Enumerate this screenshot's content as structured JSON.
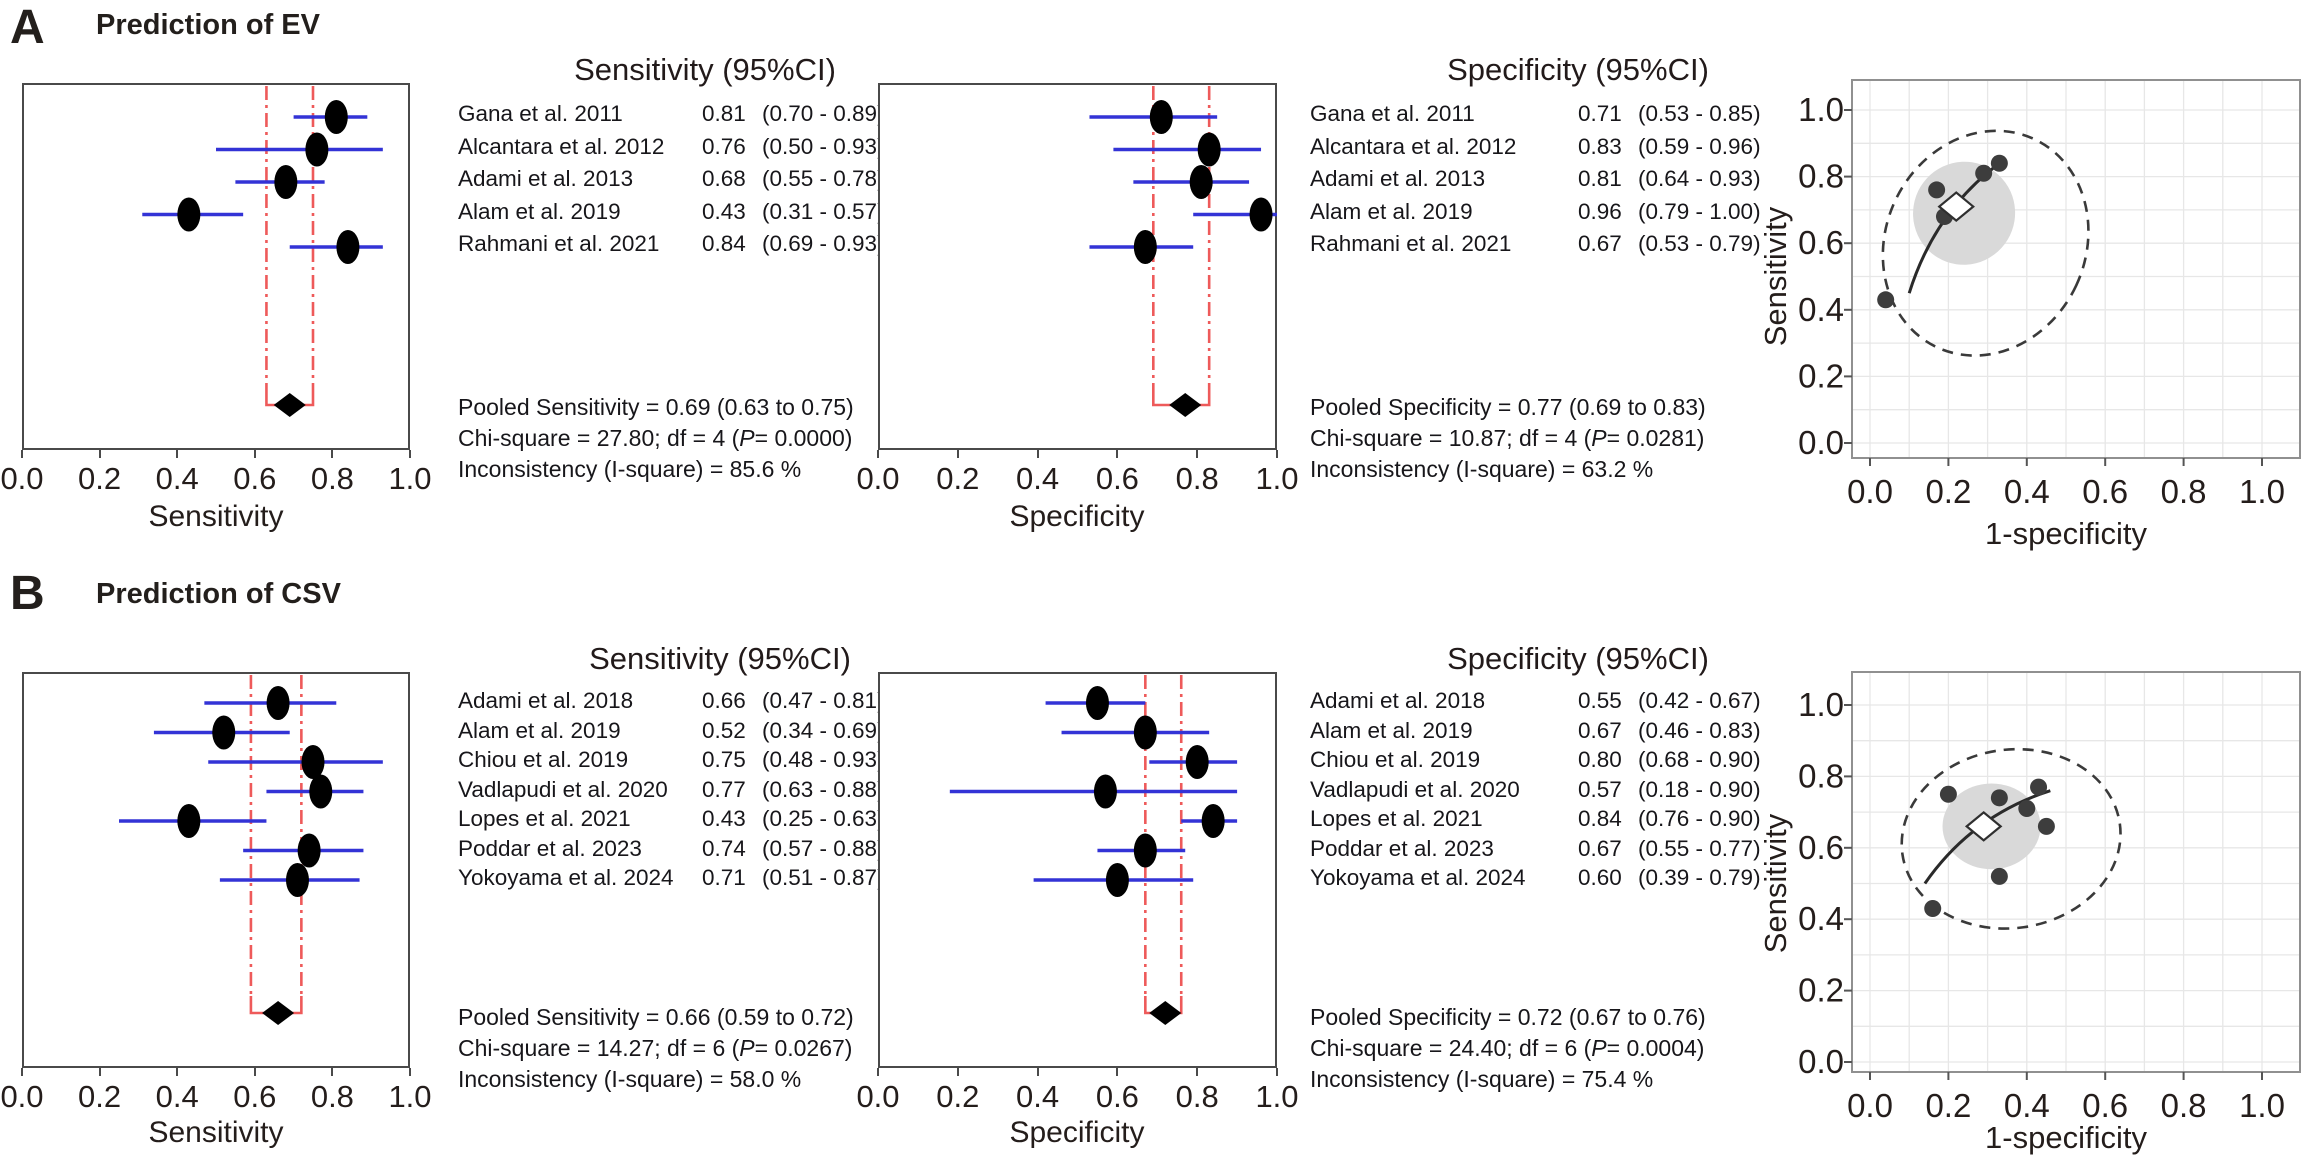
{
  "colors": {
    "ci_line_blue": "#3333d6",
    "pooled_red": "#ee5a5a",
    "marker_black": "#000000",
    "box_border": "#4a4a4a",
    "sroc_point": "#3d3d3d",
    "sroc_conf_fill": "#d9d9d9",
    "sroc_pred_stroke": "#3a3a3a",
    "grid": "#e7e7e7",
    "frame": "#909090",
    "text": "#171412"
  },
  "panels": [
    {
      "label": "A",
      "title": "Prediction of EV"
    },
    {
      "label": "B",
      "title": "Prediction of CSV"
    }
  ],
  "chart_data": [
    {
      "id": "A-sensitivity-forest",
      "type": "forest",
      "panel": "A",
      "measure": "sensitivity",
      "header": "Sensitivity (95%CI)",
      "axis": {
        "label": "Sensitivity",
        "range": [
          0,
          1
        ],
        "ticks": [
          0.0,
          0.2,
          0.4,
          0.6,
          0.8,
          1.0
        ]
      },
      "studies": [
        {
          "name": "Gana et al. 2011",
          "est": 0.81,
          "lo": 0.7,
          "hi": 0.89
        },
        {
          "name": "Alcantara et al. 2012",
          "est": 0.76,
          "lo": 0.5,
          "hi": 0.93
        },
        {
          "name": "Adami et al. 2013",
          "est": 0.68,
          "lo": 0.55,
          "hi": 0.78
        },
        {
          "name": "Alam et al. 2019",
          "est": 0.43,
          "lo": 0.31,
          "hi": 0.57
        },
        {
          "name": "Rahmani et al. 2021",
          "est": 0.84,
          "lo": 0.69,
          "hi": 0.93
        }
      ],
      "pooled": {
        "est": 0.69,
        "lo": 0.63,
        "hi": 0.75
      },
      "stats": {
        "pooled": "Pooled Sensitivity = 0.69 (0.63 to 0.75)",
        "chi_pre": "Chi-square = 27.80; df =  4 (",
        "chi_p": "P",
        "chi_post": "= 0.0000)",
        "inconsistency": "Inconsistency (I-square) = 85.6 %"
      }
    },
    {
      "id": "A-specificity-forest",
      "type": "forest",
      "panel": "A",
      "measure": "specificity",
      "header": "Specificity (95%CI)",
      "axis": {
        "label": "Specificity",
        "range": [
          0,
          1
        ],
        "ticks": [
          0.0,
          0.2,
          0.4,
          0.6,
          0.8,
          1.0
        ]
      },
      "studies": [
        {
          "name": "Gana et al. 2011",
          "est": 0.71,
          "lo": 0.53,
          "hi": 0.85
        },
        {
          "name": "Alcantara et al. 2012",
          "est": 0.83,
          "lo": 0.59,
          "hi": 0.96
        },
        {
          "name": "Adami et al. 2013",
          "est": 0.81,
          "lo": 0.64,
          "hi": 0.93
        },
        {
          "name": "Alam et al. 2019",
          "est": 0.96,
          "lo": 0.79,
          "hi": 1.0
        },
        {
          "name": "Rahmani et al. 2021",
          "est": 0.67,
          "lo": 0.53,
          "hi": 0.79
        }
      ],
      "pooled": {
        "est": 0.77,
        "lo": 0.69,
        "hi": 0.83
      },
      "stats": {
        "pooled": "Pooled Specificity = 0.77 (0.69 to 0.83)",
        "chi_pre": "Chi-square = 10.87; df =  4 (",
        "chi_p": "P",
        "chi_post": "= 0.0281)",
        "inconsistency": "Inconsistency (I-square) = 63.2 %"
      }
    },
    {
      "id": "A-sroc",
      "type": "scatter",
      "panel": "A",
      "xlabel": "1-specificity",
      "ylabel": "Sensitivity",
      "xticks": [
        0.0,
        0.2,
        0.4,
        0.6,
        0.8,
        1.0
      ],
      "yticks": [
        0.0,
        0.2,
        0.4,
        0.6,
        0.8,
        1.0
      ],
      "xlim": [
        0,
        1
      ],
      "ylim": [
        0,
        1
      ],
      "grid": true,
      "points": [
        {
          "name": "Gana et al. 2011",
          "x": 0.29,
          "y": 0.81
        },
        {
          "name": "Alcantara et al. 2012",
          "x": 0.17,
          "y": 0.76
        },
        {
          "name": "Adami et al. 2013",
          "x": 0.19,
          "y": 0.68
        },
        {
          "name": "Alam et al. 2019",
          "x": 0.04,
          "y": 0.43
        },
        {
          "name": "Rahmani et al. 2021",
          "x": 0.33,
          "y": 0.84
        }
      ],
      "summary_point": {
        "x": 0.22,
        "y": 0.71
      },
      "sroc_curve": [
        [
          0.1,
          0.45
        ],
        [
          0.19,
          0.67
        ],
        [
          0.33,
          0.84
        ]
      ],
      "confidence_ellipse": {
        "cx": 0.24,
        "cy": 0.69,
        "rx": 0.13,
        "ry": 0.155,
        "rot": 20
      },
      "prediction_ellipse": {
        "cx": 0.295,
        "cy": 0.6,
        "rx": 0.255,
        "ry": 0.345,
        "rot": 25
      }
    },
    {
      "id": "B-sensitivity-forest",
      "type": "forest",
      "panel": "B",
      "measure": "sensitivity",
      "header": "Sensitivity (95%CI)",
      "axis": {
        "label": "Sensitivity",
        "range": [
          0,
          1
        ],
        "ticks": [
          0.0,
          0.2,
          0.4,
          0.6,
          0.8,
          1.0
        ]
      },
      "studies": [
        {
          "name": "Adami et al. 2018",
          "est": 0.66,
          "lo": 0.47,
          "hi": 0.81
        },
        {
          "name": "Alam et al. 2019",
          "est": 0.52,
          "lo": 0.34,
          "hi": 0.69
        },
        {
          "name": "Chiou et al. 2019",
          "est": 0.75,
          "lo": 0.48,
          "hi": 0.93
        },
        {
          "name": "Vadlapudi et al. 2020",
          "est": 0.77,
          "lo": 0.63,
          "hi": 0.88
        },
        {
          "name": "Lopes et al. 2021",
          "est": 0.43,
          "lo": 0.25,
          "hi": 0.63
        },
        {
          "name": "Poddar et al. 2023",
          "est": 0.74,
          "lo": 0.57,
          "hi": 0.88
        },
        {
          "name": "Yokoyama et al. 2024",
          "est": 0.71,
          "lo": 0.51,
          "hi": 0.87
        }
      ],
      "pooled": {
        "est": 0.66,
        "lo": 0.59,
        "hi": 0.72
      },
      "stats": {
        "pooled": "Pooled Sensitivity = 0.66 (0.59 to 0.72)",
        "chi_pre": "Chi-square = 14.27; df =  6 (",
        "chi_p": "P",
        "chi_post": "= 0.0267)",
        "inconsistency": "Inconsistency (I-square) = 58.0 %"
      }
    },
    {
      "id": "B-specificity-forest",
      "type": "forest",
      "panel": "B",
      "measure": "specificity",
      "header": "Specificity (95%CI)",
      "axis": {
        "label": "Specificity",
        "range": [
          0,
          1
        ],
        "ticks": [
          0.0,
          0.2,
          0.4,
          0.6,
          0.8,
          1.0
        ]
      },
      "studies": [
        {
          "name": "Adami et al. 2018",
          "est": 0.55,
          "lo": 0.42,
          "hi": 0.67
        },
        {
          "name": "Alam et al. 2019",
          "est": 0.67,
          "lo": 0.46,
          "hi": 0.83
        },
        {
          "name": "Chiou et al. 2019",
          "est": 0.8,
          "lo": 0.68,
          "hi": 0.9
        },
        {
          "name": "Vadlapudi et al. 2020",
          "est": 0.57,
          "lo": 0.18,
          "hi": 0.9
        },
        {
          "name": "Lopes et al. 2021",
          "est": 0.84,
          "lo": 0.76,
          "hi": 0.9
        },
        {
          "name": "Poddar et al. 2023",
          "est": 0.67,
          "lo": 0.55,
          "hi": 0.77
        },
        {
          "name": "Yokoyama et al. 2024",
          "est": 0.6,
          "lo": 0.39,
          "hi": 0.79
        }
      ],
      "pooled": {
        "est": 0.72,
        "lo": 0.67,
        "hi": 0.76
      },
      "stats": {
        "pooled": "Pooled Specificity = 0.72 (0.67 to 0.76)",
        "chi_pre": "Chi-square = 24.40; df =  6 (",
        "chi_p": "P",
        "chi_post": "= 0.0004)",
        "inconsistency": "Inconsistency (I-square) = 75.4 %"
      }
    },
    {
      "id": "B-sroc",
      "type": "scatter",
      "panel": "B",
      "xlabel": "1-specificity",
      "ylabel": "Sensitivity",
      "xticks": [
        0.0,
        0.2,
        0.4,
        0.6,
        0.8,
        1.0
      ],
      "yticks": [
        0.0,
        0.2,
        0.4,
        0.6,
        0.8,
        1.0
      ],
      "xlim": [
        0,
        1
      ],
      "ylim": [
        0,
        1
      ],
      "grid": true,
      "points": [
        {
          "name": "Adami et al. 2018",
          "x": 0.45,
          "y": 0.66
        },
        {
          "name": "Alam et al. 2019",
          "x": 0.33,
          "y": 0.52
        },
        {
          "name": "Chiou et al. 2019",
          "x": 0.2,
          "y": 0.75
        },
        {
          "name": "Vadlapudi et al. 2020",
          "x": 0.43,
          "y": 0.77
        },
        {
          "name": "Lopes et al. 2021",
          "x": 0.16,
          "y": 0.43
        },
        {
          "name": "Poddar et al. 2023",
          "x": 0.33,
          "y": 0.74
        },
        {
          "name": "Yokoyama et al. 2024",
          "x": 0.4,
          "y": 0.71
        }
      ],
      "summary_point": {
        "x": 0.29,
        "y": 0.66
      },
      "sroc_curve": [
        [
          0.14,
          0.5
        ],
        [
          0.28,
          0.66
        ],
        [
          0.46,
          0.76
        ]
      ],
      "confidence_ellipse": {
        "cx": 0.31,
        "cy": 0.66,
        "rx": 0.125,
        "ry": 0.12,
        "rot": 0
      },
      "prediction_ellipse": {
        "cx": 0.36,
        "cy": 0.625,
        "rx": 0.28,
        "ry": 0.25,
        "rot": -8
      }
    }
  ]
}
